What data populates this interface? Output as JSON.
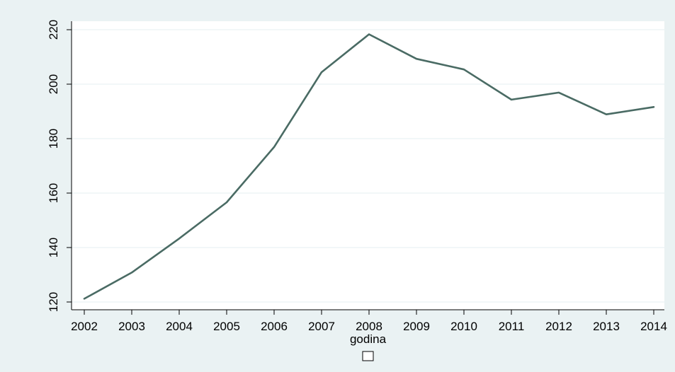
{
  "colors": {
    "outer_background": "#eaf2f3",
    "plot_background": "#ffffff",
    "gridline": "#eaf2f3",
    "axis": "#000000",
    "series_line": "#4a6b64",
    "legend_key_border": "#000000"
  },
  "chart_data": {
    "type": "line",
    "title": "",
    "xlabel": "godina",
    "ylabel": "",
    "x": [
      2002,
      2003,
      2004,
      2005,
      2006,
      2007,
      2008,
      2009,
      2010,
      2011,
      2012,
      2013,
      2014
    ],
    "series": [
      {
        "values": [
          121.2,
          130.8,
          143.3,
          156.6,
          176.9,
          204.4,
          218.3,
          209.3,
          205.4,
          194.3,
          196.9,
          188.9,
          191.6
        ]
      }
    ],
    "x_ticks": [
      "2002",
      "2003",
      "2004",
      "2005",
      "2006",
      "2007",
      "2008",
      "2009",
      "2010",
      "2011",
      "2012",
      "2013",
      "2014"
    ],
    "y_ticks": [
      "120",
      "140",
      "160",
      "180",
      "200",
      "220"
    ],
    "xlim": [
      2002,
      2014
    ],
    "ylim": [
      120,
      220
    ],
    "grid": "horizontal",
    "legend": "bottom-center"
  }
}
